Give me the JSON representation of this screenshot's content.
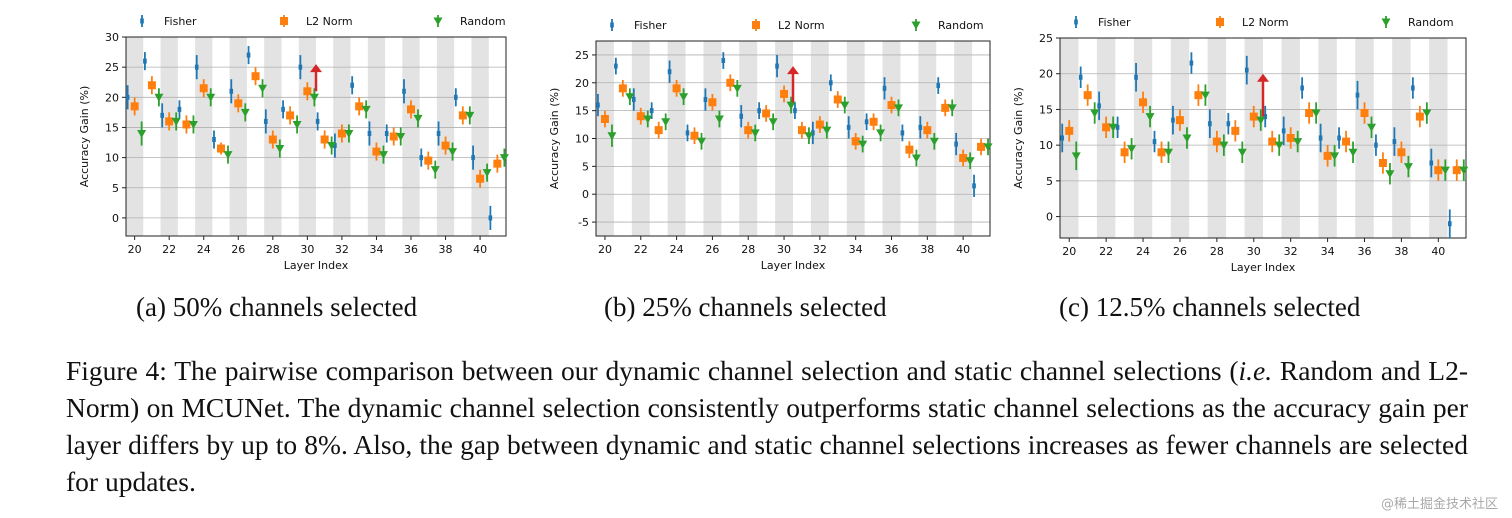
{
  "figure": {
    "caption_label": "Figure 4:",
    "caption_part1": "The pairwise comparison between our dynamic channel selection and static channel selections (",
    "caption_ie": "i.e.",
    "caption_part2": " Random and L2-Norm) on MCUNet. The dynamic channel selection consistently outperforms static channel selections as the accuracy gain per layer differs by up to 8%. Also, the gap between dynamic and static channel selections increases as fewer channels are selected for updates.",
    "watermark": "@稀土掘金技术社区"
  },
  "colors": {
    "fisher": "#1f77b4",
    "l2": "#ff7f0e",
    "random": "#2ca02c",
    "arrow": "#d62728",
    "band": "#e3e3e3",
    "grid": "#b0b0b0"
  },
  "chart_data": [
    {
      "type": "scatter",
      "caption": "(a) 50% channels selected",
      "xlabel": "Layer Index",
      "ylabel": "Accuracy Gain (%)",
      "xlim": [
        19.5,
        41.5
      ],
      "ylim": [
        -3,
        30
      ],
      "yticks": [
        0,
        5,
        10,
        15,
        20,
        25,
        30
      ],
      "xticks": [
        20,
        22,
        24,
        26,
        28,
        30,
        32,
        34,
        36,
        38,
        40
      ],
      "grid": true,
      "legend": "top",
      "arrow_at_layer": 30.5,
      "arrow_from": 21,
      "arrow_to": 25.5,
      "layers": [
        20,
        21,
        22,
        23,
        24,
        25,
        26,
        27,
        28,
        29,
        30,
        31,
        32,
        33,
        34,
        35,
        36,
        37,
        38,
        39,
        40,
        41
      ],
      "series": [
        {
          "name": "Fisher",
          "values": [
            20,
            26,
            17,
            18,
            25,
            13,
            21,
            27,
            16,
            18,
            25,
            16,
            12,
            22,
            14,
            14,
            21,
            10,
            14,
            20,
            10,
            0
          ],
          "errors": [
            2,
            1.5,
            2,
            1.5,
            2,
            1.5,
            2,
            1.5,
            2,
            1.5,
            2,
            1.5,
            2,
            1.5,
            2,
            1.5,
            2,
            1.5,
            2,
            1.5,
            2,
            2
          ]
        },
        {
          "name": "L2 Norm",
          "values": [
            18.5,
            22,
            16,
            15.5,
            21.5,
            11.5,
            19,
            23.5,
            13,
            17,
            21,
            13,
            14,
            18.5,
            11,
            13.5,
            18,
            9.5,
            12,
            17,
            6.5,
            9
          ],
          "errors": [
            1.5,
            1.5,
            1.5,
            1.5,
            1.5,
            1,
            1.5,
            1.5,
            1.5,
            1.5,
            1.5,
            1.5,
            1.5,
            1.5,
            1.5,
            1.5,
            1.5,
            1.5,
            1.5,
            1.5,
            1.5,
            1.5
          ]
        },
        {
          "name": "Random",
          "values": [
            14,
            20,
            16,
            15.5,
            20,
            10.5,
            17.5,
            21.5,
            11.5,
            15.5,
            20,
            12,
            14,
            18,
            10.5,
            13.5,
            16.5,
            8,
            11,
            17,
            7.5,
            10
          ],
          "errors": [
            2,
            1.5,
            1.5,
            1.5,
            1.5,
            1.5,
            1.5,
            1.5,
            1.5,
            1.5,
            1.5,
            1.5,
            1.5,
            1.5,
            1.5,
            1.5,
            1.5,
            1.5,
            1.5,
            1.5,
            1.5,
            1.5
          ]
        }
      ]
    },
    {
      "type": "scatter",
      "caption": "(b) 25% channels selected",
      "xlabel": "Layer Index",
      "ylabel": "Accuracy Gain (%)",
      "xlim": [
        19.5,
        41.5
      ],
      "ylim": [
        -7.5,
        27.5
      ],
      "yticks": [
        -5,
        0,
        5,
        10,
        15,
        20,
        25
      ],
      "xticks": [
        20,
        22,
        24,
        26,
        28,
        30,
        32,
        34,
        36,
        38,
        40
      ],
      "grid": true,
      "legend": "top",
      "arrow_at_layer": 30.5,
      "arrow_from": 16.5,
      "arrow_to": 23,
      "layers": [
        20,
        21,
        22,
        23,
        24,
        25,
        26,
        27,
        28,
        29,
        30,
        31,
        32,
        33,
        34,
        35,
        36,
        37,
        38,
        39,
        40,
        41
      ],
      "series": [
        {
          "name": "Fisher",
          "values": [
            16,
            23,
            17,
            15,
            22,
            11,
            17,
            24,
            14,
            15,
            23,
            15,
            11,
            20,
            12,
            13,
            19,
            11,
            12,
            19.5,
            9,
            1.5
          ],
          "errors": [
            2,
            1.5,
            2,
            1.5,
            2,
            1.5,
            2,
            1.5,
            2,
            1.5,
            2,
            1.5,
            2,
            1.5,
            2,
            1.5,
            2,
            1.5,
            2,
            1.5,
            2,
            2
          ]
        },
        {
          "name": "L2 Norm",
          "values": [
            13.5,
            19,
            14,
            11.5,
            19,
            10.5,
            16.5,
            20,
            11.5,
            14.5,
            18,
            11.5,
            12.5,
            17,
            9.5,
            13,
            16,
            8,
            11.5,
            15.5,
            6.5,
            8.5
          ],
          "errors": [
            1.5,
            1.5,
            1.5,
            1.5,
            1.5,
            1.5,
            1.5,
            1.5,
            1.5,
            1.5,
            1.5,
            1.5,
            1.5,
            1.5,
            1.5,
            1.5,
            1.5,
            1.5,
            1.5,
            1.5,
            1.5,
            1.5
          ]
        },
        {
          "name": "Random",
          "values": [
            10.5,
            17.5,
            13.5,
            13,
            17.5,
            9.5,
            13.5,
            19,
            11,
            13,
            16,
            10.5,
            11.5,
            16,
            9,
            11,
            15.5,
            6.5,
            9.5,
            15.5,
            6,
            8.5
          ],
          "errors": [
            2,
            1.5,
            1.5,
            1.5,
            1.5,
            1.5,
            1.5,
            1.5,
            1.5,
            1.5,
            1.5,
            1.5,
            1.5,
            1.5,
            1.5,
            1.5,
            1.5,
            1.5,
            1.5,
            1.5,
            1.5,
            1.5
          ]
        }
      ]
    },
    {
      "type": "scatter",
      "caption": "(c) 12.5% channels selected",
      "xlabel": "Layer Index",
      "ylabel": "Accuracy Gain (%)",
      "xlim": [
        19.5,
        41.5
      ],
      "ylim": [
        -3,
        25
      ],
      "yticks": [
        0,
        5,
        10,
        15,
        20,
        25
      ],
      "xticks": [
        20,
        22,
        24,
        26,
        28,
        30,
        32,
        34,
        36,
        38,
        40
      ],
      "grid": true,
      "legend": "top",
      "arrow_at_layer": 30.5,
      "arrow_from": 14,
      "arrow_to": 20,
      "layers": [
        20,
        21,
        22,
        23,
        24,
        25,
        26,
        27,
        28,
        29,
        30,
        31,
        32,
        33,
        34,
        35,
        36,
        37,
        38,
        39,
        40,
        41
      ],
      "series": [
        {
          "name": "Fisher",
          "values": [
            11,
            19.5,
            15.5,
            12.5,
            19.5,
            10.5,
            13.5,
            21.5,
            13,
            13,
            20.5,
            14,
            12,
            18,
            11,
            11,
            17,
            10,
            10.5,
            18,
            7.5,
            -1
          ],
          "errors": [
            2,
            1.5,
            2,
            1.5,
            2,
            1.5,
            2,
            1.5,
            2,
            1.5,
            2,
            1.5,
            2,
            1.5,
            2,
            1.5,
            2,
            1.5,
            2,
            1.5,
            2,
            2
          ]
        },
        {
          "name": "L2 Norm",
          "values": [
            12,
            17,
            12.5,
            9,
            16,
            9,
            13.5,
            17,
            10.5,
            12,
            14,
            10.5,
            11,
            14.5,
            8.5,
            10.5,
            14.5,
            7.5,
            9,
            14,
            6.5,
            6.5
          ],
          "errors": [
            1.5,
            1.5,
            1.5,
            1.5,
            1.5,
            1.5,
            1.5,
            1.5,
            1.5,
            1.5,
            1.5,
            1.5,
            1.5,
            1.5,
            1.5,
            1.5,
            1.5,
            1.5,
            1.5,
            1.5,
            1.5,
            1.5
          ]
        },
        {
          "name": "Random",
          "values": [
            8.5,
            14.5,
            12.5,
            9.5,
            14,
            9,
            11,
            17,
            10,
            9,
            13.5,
            10,
            10.5,
            14.5,
            8.5,
            9,
            12.5,
            6,
            7,
            14.5,
            6.5,
            6.5
          ],
          "errors": [
            2,
            1.5,
            1.5,
            1.5,
            1.5,
            1.5,
            1.5,
            1.5,
            1.5,
            1.5,
            1.5,
            1.5,
            1.5,
            1.5,
            1.5,
            1.5,
            1.5,
            1.5,
            1.5,
            1.5,
            1.5,
            1.5
          ]
        }
      ]
    }
  ]
}
